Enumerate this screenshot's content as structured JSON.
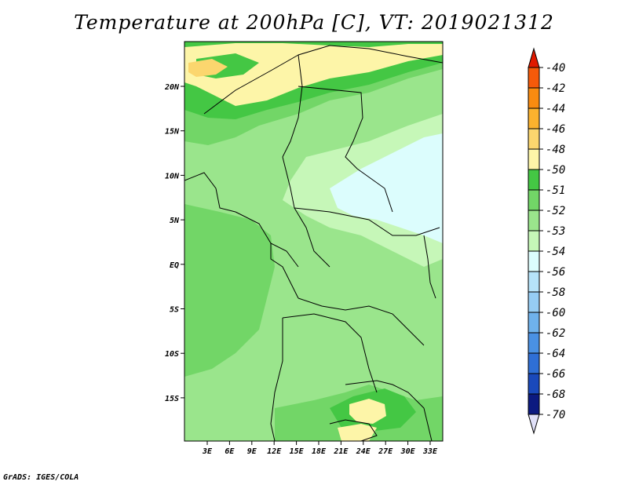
{
  "title": "Temperature at 200hPa [C], VT: 2019021312",
  "credit": "GrADS: IGES/COLA",
  "map": {
    "lat_labels": [
      "20N",
      "15N",
      "10N",
      "5N",
      "EQ",
      "5S",
      "10S",
      "15S"
    ],
    "lon_labels": [
      "3E",
      "6E",
      "9E",
      "12E",
      "15E",
      "18E",
      "21E",
      "24E",
      "27E",
      "30E",
      "33E"
    ]
  },
  "colorbar": {
    "labels": [
      "-40",
      "-42",
      "-44",
      "-46",
      "-48",
      "-50",
      "-51",
      "-52",
      "-53",
      "-54",
      "-56",
      "-58",
      "-60",
      "-62",
      "-64",
      "-66",
      "-68",
      "-70"
    ],
    "colors": [
      "#f01e05",
      "#f55a0a",
      "#f98b10",
      "#fbb22e",
      "#fbd66e",
      "#fdf5a8",
      "#44c744",
      "#72d667",
      "#9ae58c",
      "#c6f7b8",
      "#dcfdfd",
      "#b6e3f9",
      "#96cdf4",
      "#6fb2ec",
      "#4a91e4",
      "#2f6fd6",
      "#1a49bb",
      "#0c1a80"
    ],
    "top_arrow_color": "#e01900",
    "bottom_arrow_color": "#e0e0f8"
  }
}
